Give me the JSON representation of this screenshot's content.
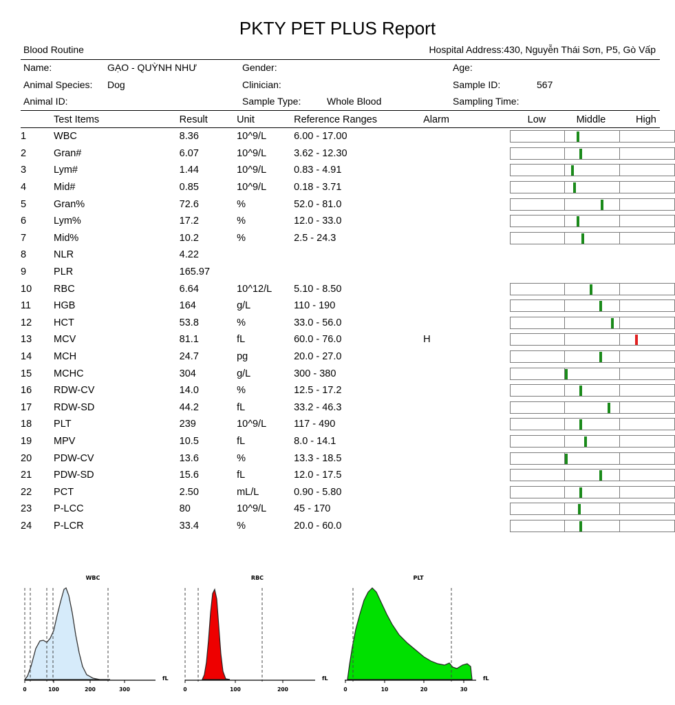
{
  "report": {
    "title": "PKTY PET PLUS Report",
    "section": "Blood Routine",
    "hospital_address": "Hospital Address:430, Nguyễn Thái Sơn, P5, Gò Vấp"
  },
  "patient": {
    "name_label": "Name:",
    "name_value": "GẠO - QUỲNH NHƯ",
    "gender_label": "Gender:",
    "gender_value": "",
    "age_label": "Age:",
    "age_value": "",
    "species_label": "Animal Species:",
    "species_value": "Dog",
    "clinician_label": "Clinician:",
    "clinician_value": "",
    "sample_id_label": "Sample ID:",
    "sample_id_value": "567",
    "animal_id_label": "Animal ID:",
    "animal_id_value": "",
    "sample_type_label": "Sample Type:",
    "sample_type_value": "Whole Blood",
    "sampling_time_label": "Sampling Time:",
    "sampling_time_value": ""
  },
  "headers": {
    "test_items": "Test Items",
    "result": "Result",
    "unit": "Unit",
    "reference": "Reference Ranges",
    "alarm": "Alarm",
    "low": "Low",
    "middle": "Middle",
    "high": "High"
  },
  "colors": {
    "normal_marker": "#1a8a1a",
    "alarm_marker": "#e02020",
    "wbc_hist": "#d6ebfa",
    "rbc_hist": "#ee0000",
    "plt_hist": "#00e000"
  },
  "results": [
    {
      "no": "1",
      "item": "WBC",
      "result": "8.36",
      "unit": "10^9/L",
      "ref": "6.00 - 17.00",
      "alarm": "",
      "level": 0.41
    },
    {
      "no": "2",
      "item": "Gran#",
      "result": "6.07",
      "unit": "10^9/L",
      "ref": "3.62 - 12.30",
      "alarm": "",
      "level": 0.43
    },
    {
      "no": "3",
      "item": "Lym#",
      "result": "1.44",
      "unit": "10^9/L",
      "ref": "0.83 - 4.91",
      "alarm": "",
      "level": 0.38
    },
    {
      "no": "4",
      "item": "Mid#",
      "result": "0.85",
      "unit": "10^9/L",
      "ref": "0.18 - 3.71",
      "alarm": "",
      "level": 0.39
    },
    {
      "no": "5",
      "item": "Gran%",
      "result": "72.6",
      "unit": "%",
      "ref": "52.0 - 81.0",
      "alarm": "",
      "level": 0.56
    },
    {
      "no": "6",
      "item": "Lym%",
      "result": "17.2",
      "unit": "%",
      "ref": "12.0 - 33.0",
      "alarm": "",
      "level": 0.41
    },
    {
      "no": "7",
      "item": "Mid%",
      "result": "10.2",
      "unit": "%",
      "ref": "2.5 - 24.3",
      "alarm": "",
      "level": 0.44
    },
    {
      "no": "8",
      "item": "NLR",
      "result": "4.22",
      "unit": "",
      "ref": "",
      "alarm": "",
      "level": null
    },
    {
      "no": "9",
      "item": "PLR",
      "result": "165.97",
      "unit": "",
      "ref": "",
      "alarm": "",
      "level": null
    },
    {
      "no": "10",
      "item": "RBC",
      "result": "6.64",
      "unit": "10^12/L",
      "ref": "5.10 - 8.50",
      "alarm": "",
      "level": 0.49
    },
    {
      "no": "11",
      "item": "HGB",
      "result": "164",
      "unit": "g/L",
      "ref": "110 - 190",
      "alarm": "",
      "level": 0.55
    },
    {
      "no": "12",
      "item": "HCT",
      "result": "53.8",
      "unit": "%",
      "ref": "33.0 - 56.0",
      "alarm": "",
      "level": 0.62
    },
    {
      "no": "13",
      "item": "MCV",
      "result": "81.1",
      "unit": "fL",
      "ref": "60.0 - 76.0",
      "alarm": "H",
      "level": 0.77
    },
    {
      "no": "14",
      "item": "MCH",
      "result": "24.7",
      "unit": "pg",
      "ref": "20.0 - 27.0",
      "alarm": "",
      "level": 0.55
    },
    {
      "no": "15",
      "item": "MCHC",
      "result": "304",
      "unit": "g/L",
      "ref": "300 - 380",
      "alarm": "",
      "level": 0.34
    },
    {
      "no": "16",
      "item": "RDW-CV",
      "result": "14.0",
      "unit": "%",
      "ref": "12.5 - 17.2",
      "alarm": "",
      "level": 0.43
    },
    {
      "no": "17",
      "item": "RDW-SD",
      "result": "44.2",
      "unit": "fL",
      "ref": "33.2 - 46.3",
      "alarm": "",
      "level": 0.6
    },
    {
      "no": "18",
      "item": "PLT",
      "result": "239",
      "unit": "10^9/L",
      "ref": "117 - 490",
      "alarm": "",
      "level": 0.43
    },
    {
      "no": "19",
      "item": "MPV",
      "result": "10.5",
      "unit": "fL",
      "ref": "8.0 - 14.1",
      "alarm": "",
      "level": 0.46
    },
    {
      "no": "20",
      "item": "PDW-CV",
      "result": "13.6",
      "unit": "%",
      "ref": "13.3 - 18.5",
      "alarm": "",
      "level": 0.34
    },
    {
      "no": "21",
      "item": "PDW-SD",
      "result": "15.6",
      "unit": "fL",
      "ref": "12.0 - 17.5",
      "alarm": "",
      "level": 0.55
    },
    {
      "no": "22",
      "item": "PCT",
      "result": "2.50",
      "unit": "mL/L",
      "ref": "0.90 - 5.80",
      "alarm": "",
      "level": 0.43
    },
    {
      "no": "23",
      "item": "P-LCC",
      "result": "80",
      "unit": "10^9/L",
      "ref": "45 - 170",
      "alarm": "",
      "level": 0.42
    },
    {
      "no": "24",
      "item": "P-LCR",
      "result": "33.4",
      "unit": "%",
      "ref": "20.0 - 60.0",
      "alarm": "",
      "level": 0.43
    }
  ],
  "histograms": [
    {
      "title": "WBC",
      "unit": "fL",
      "ticks": [
        "0",
        "100",
        "200",
        "300"
      ]
    },
    {
      "title": "RBC",
      "unit": "fL",
      "ticks": [
        "0",
        "100",
        "200"
      ]
    },
    {
      "title": "PLT",
      "unit": "fL",
      "ticks": [
        "0",
        "10",
        "20",
        "30"
      ]
    }
  ]
}
